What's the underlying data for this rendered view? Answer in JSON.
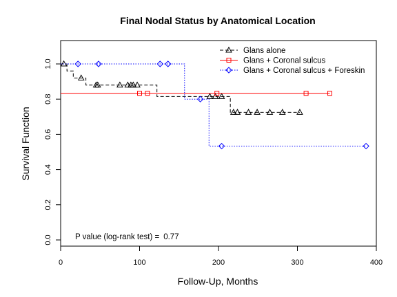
{
  "chart_data": {
    "type": "line",
    "subtype": "kaplan-meier step curves with censoring markers",
    "title": "Final Nodal Status by Anatomical Location",
    "xlabel": "Follow-Up, Months",
    "ylabel": "Survival Function",
    "xlim": [
      0,
      400
    ],
    "ylim": [
      0,
      1.0
    ],
    "xticks": [
      0,
      100,
      200,
      300,
      400
    ],
    "yticks": [
      0.0,
      0.2,
      0.4,
      0.6,
      0.8,
      1.0
    ],
    "xtick_labels": [
      "0",
      "100",
      "200",
      "300",
      "400"
    ],
    "ytick_labels": [
      "0.0",
      "0.2",
      "0.4",
      "0.6",
      "0.8",
      "1.0"
    ],
    "grid": false,
    "legend_position": "top-right",
    "annotation": {
      "label": "P value (log-rank test) =",
      "value": "0.77"
    },
    "series": [
      {
        "name": "Glans alone",
        "color": "#000000",
        "line_style": "dashed",
        "marker": "triangle",
        "steps": [
          [
            0,
            1.0
          ],
          [
            8,
            0.96
          ],
          [
            16,
            0.92
          ],
          [
            32,
            0.88
          ],
          [
            122,
            0.815
          ],
          [
            215,
            0.725
          ],
          [
            303,
            0.725
          ]
        ],
        "censored": [
          [
            4,
            1.0
          ],
          [
            26,
            0.92
          ],
          [
            45,
            0.88
          ],
          [
            47,
            0.88
          ],
          [
            75,
            0.88
          ],
          [
            85,
            0.88
          ],
          [
            89,
            0.88
          ],
          [
            92,
            0.88
          ],
          [
            97,
            0.88
          ],
          [
            189,
            0.815
          ],
          [
            196,
            0.815
          ],
          [
            204,
            0.815
          ],
          [
            219,
            0.725
          ],
          [
            224,
            0.725
          ],
          [
            238,
            0.725
          ],
          [
            249,
            0.725
          ],
          [
            265,
            0.725
          ],
          [
            281,
            0.725
          ],
          [
            303,
            0.725
          ]
        ]
      },
      {
        "name": "Glans + Coronal sulcus",
        "color": "#ff0000",
        "line_style": "solid",
        "marker": "square",
        "steps": [
          [
            0,
            0.833
          ],
          [
            341,
            0.833
          ]
        ],
        "censored": [
          [
            100,
            0.833
          ],
          [
            110,
            0.833
          ],
          [
            198,
            0.833
          ],
          [
            311,
            0.833
          ],
          [
            341,
            0.833
          ]
        ]
      },
      {
        "name": "Glans + Coronal sulcus + Foreskin",
        "color": "#0000ff",
        "line_style": "dotted",
        "marker": "diamond",
        "steps": [
          [
            0,
            1.0
          ],
          [
            157,
            0.8
          ],
          [
            188,
            0.533
          ],
          [
            387,
            0.533
          ]
        ],
        "censored": [
          [
            22,
            1.0
          ],
          [
            48,
            1.0
          ],
          [
            126,
            1.0
          ],
          [
            136,
            1.0
          ],
          [
            177,
            0.8
          ],
          [
            204,
            0.533
          ],
          [
            387,
            0.533
          ]
        ]
      }
    ]
  }
}
